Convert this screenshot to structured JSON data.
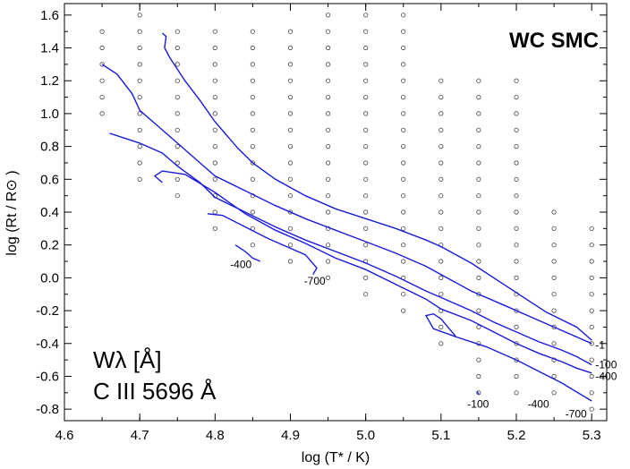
{
  "chart_data": {
    "type": "line",
    "title": "WC SMC",
    "annotation_lines": [
      "Wλ [Å]",
      "C III 5696 Å"
    ],
    "xlabel": "log (T* / K)",
    "ylabel": "log (Rt / R⊙ )",
    "xlim": [
      4.6,
      5.32
    ],
    "ylim": [
      -0.87,
      1.67
    ],
    "x_ticks": [
      4.6,
      4.7,
      4.8,
      4.9,
      5.0,
      5.1,
      5.2,
      5.3
    ],
    "x_tick_labels": [
      "4.6",
      "4.7",
      "4.8",
      "4.9",
      "5.0",
      "5.1",
      "5.2",
      "5.3"
    ],
    "y_ticks": [
      -0.8,
      -0.6,
      -0.4,
      -0.2,
      0.0,
      0.2,
      0.4,
      0.6,
      0.8,
      1.0,
      1.2,
      1.4,
      1.6
    ],
    "y_tick_labels": [
      "-0.8",
      "-0.6",
      "-0.4",
      "-0.2",
      "0.0",
      "0.2",
      "0.4",
      "0.6",
      "0.8",
      "1.0",
      "1.2",
      "1.4",
      "1.6"
    ],
    "grid_points": [
      {
        "x": 4.65,
        "ymin": 1.0,
        "ymax": 1.5
      },
      {
        "x": 4.7,
        "ymin": 0.6,
        "ymax": 1.6
      },
      {
        "x": 4.75,
        "ymin": 0.5,
        "ymax": 1.5
      },
      {
        "x": 4.8,
        "ymin": 0.3,
        "ymax": 1.5
      },
      {
        "x": 4.85,
        "ymin": 0.2,
        "ymax": 1.5
      },
      {
        "x": 4.9,
        "ymin": 0.1,
        "ymax": 1.5
      },
      {
        "x": 4.95,
        "ymin": 0.0,
        "ymax": 1.6
      },
      {
        "x": 5.0,
        "ymin": -0.1,
        "ymax": 1.6
      },
      {
        "x": 5.05,
        "ymin": -0.2,
        "ymax": 1.6
      },
      {
        "x": 5.1,
        "ymin": -0.4,
        "ymax": 1.2
      },
      {
        "x": 5.15,
        "ymin": -0.7,
        "ymax": 1.2
      },
      {
        "x": 5.2,
        "ymin": -0.7,
        "ymax": 1.2
      },
      {
        "x": 5.25,
        "ymin": -0.7,
        "ymax": 0.4
      },
      {
        "x": 5.3,
        "ymin": -0.8,
        "ymax": 0.3
      }
    ],
    "grid_step": 0.1,
    "line_color": "#1a1adc",
    "series": [
      {
        "name": "-1",
        "points": [
          [
            4.65,
            1.3
          ],
          [
            4.67,
            1.24
          ],
          [
            4.69,
            1.12
          ],
          [
            4.7,
            1.02
          ],
          [
            4.72,
            0.94
          ],
          [
            4.75,
            0.82
          ],
          [
            4.78,
            0.7
          ],
          [
            4.8,
            0.62
          ],
          [
            4.84,
            0.53
          ],
          [
            4.88,
            0.44
          ],
          [
            4.92,
            0.36
          ],
          [
            4.96,
            0.29
          ],
          [
            5.0,
            0.22
          ],
          [
            5.04,
            0.15
          ],
          [
            5.08,
            0.07
          ],
          [
            5.1,
            0.02
          ],
          [
            5.14,
            -0.08
          ],
          [
            5.18,
            -0.16
          ],
          [
            5.22,
            -0.24
          ],
          [
            5.26,
            -0.32
          ],
          [
            5.3,
            -0.4
          ]
        ]
      },
      {
        "name": "-1",
        "points": [
          [
            4.73,
            1.49
          ],
          [
            4.735,
            1.47
          ],
          [
            4.733,
            1.4
          ],
          [
            4.74,
            1.34
          ],
          [
            4.76,
            1.2
          ],
          [
            4.78,
            1.08
          ],
          [
            4.8,
            0.95
          ],
          [
            4.83,
            0.79
          ],
          [
            4.85,
            0.7
          ],
          [
            4.88,
            0.6
          ],
          [
            4.92,
            0.5
          ],
          [
            4.96,
            0.42
          ],
          [
            5.0,
            0.36
          ],
          [
            5.04,
            0.3
          ],
          [
            5.08,
            0.23
          ],
          [
            5.1,
            0.19
          ],
          [
            5.14,
            0.09
          ],
          [
            5.18,
            -0.03
          ],
          [
            5.21,
            -0.12
          ],
          [
            5.24,
            -0.21
          ],
          [
            5.28,
            -0.3
          ],
          [
            5.3,
            -0.38
          ]
        ]
      },
      {
        "name": "-100",
        "points": [
          [
            4.66,
            0.88
          ],
          [
            4.7,
            0.82
          ],
          [
            4.73,
            0.76
          ],
          [
            4.75,
            0.68
          ],
          [
            4.78,
            0.58
          ],
          [
            4.8,
            0.49
          ],
          [
            4.84,
            0.4
          ],
          [
            4.88,
            0.31
          ],
          [
            4.92,
            0.23
          ],
          [
            4.96,
            0.16
          ],
          [
            5.0,
            0.09
          ],
          [
            5.04,
            0.01
          ],
          [
            5.08,
            -0.08
          ],
          [
            5.1,
            -0.12
          ],
          [
            5.14,
            -0.2
          ],
          [
            5.17,
            -0.27
          ],
          [
            5.2,
            -0.33
          ],
          [
            5.23,
            -0.39
          ],
          [
            5.26,
            -0.44
          ],
          [
            5.28,
            -0.48
          ],
          [
            5.3,
            -0.53
          ]
        ]
      },
      {
        "name": "-400",
        "points": [
          [
            4.73,
            0.58
          ],
          [
            4.72,
            0.62
          ],
          [
            4.73,
            0.65
          ],
          [
            4.76,
            0.63
          ],
          [
            4.8,
            0.52
          ],
          [
            4.84,
            0.39
          ],
          [
            4.88,
            0.29
          ],
          [
            4.92,
            0.21
          ],
          [
            4.96,
            0.12
          ],
          [
            5.0,
            0.05
          ],
          [
            5.04,
            -0.04
          ],
          [
            5.08,
            -0.13
          ],
          [
            5.1,
            -0.19
          ],
          [
            5.14,
            -0.26
          ],
          [
            5.17,
            -0.33
          ],
          [
            5.2,
            -0.4
          ],
          [
            5.23,
            -0.46
          ],
          [
            5.26,
            -0.51
          ],
          [
            5.28,
            -0.55
          ],
          [
            5.3,
            -0.58
          ]
        ]
      },
      {
        "name": "-400",
        "points": [
          [
            4.827,
            0.2
          ],
          [
            4.84,
            0.16
          ],
          [
            4.85,
            0.12
          ],
          [
            4.86,
            0.1
          ]
        ]
      },
      {
        "name": "-700",
        "points": [
          [
            4.79,
            0.39
          ],
          [
            4.81,
            0.38
          ],
          [
            4.84,
            0.31
          ],
          [
            4.87,
            0.24
          ],
          [
            4.9,
            0.18
          ],
          [
            4.92,
            0.14
          ],
          [
            4.935,
            0.06
          ],
          [
            4.93,
            0.02
          ]
        ]
      },
      {
        "name": "-700",
        "points": [
          [
            5.12,
            -0.36
          ],
          [
            5.1,
            -0.25
          ],
          [
            5.09,
            -0.22
          ],
          [
            5.08,
            -0.23
          ],
          [
            5.09,
            -0.31
          ],
          [
            5.12,
            -0.36
          ],
          [
            5.16,
            -0.42
          ],
          [
            5.2,
            -0.5
          ],
          [
            5.23,
            -0.57
          ],
          [
            5.26,
            -0.64
          ],
          [
            5.3,
            -0.75
          ]
        ]
      },
      {
        "name": "-100",
        "points": [
          [
            5.148,
            -0.69
          ],
          [
            5.15,
            -0.71
          ]
        ]
      }
    ],
    "contour_labels": [
      {
        "text": "-1",
        "x": 5.305,
        "y": -0.41
      },
      {
        "text": "-100",
        "x": 5.305,
        "y": -0.53
      },
      {
        "text": "-400",
        "x": 5.305,
        "y": -0.6
      },
      {
        "text": "-700",
        "x": 5.265,
        "y": -0.83
      },
      {
        "text": "-400",
        "x": 5.215,
        "y": -0.77
      },
      {
        "text": "-100",
        "x": 5.135,
        "y": -0.77
      },
      {
        "text": "-400",
        "x": 4.82,
        "y": 0.08
      },
      {
        "text": "-700",
        "x": 4.918,
        "y": -0.02
      }
    ]
  }
}
